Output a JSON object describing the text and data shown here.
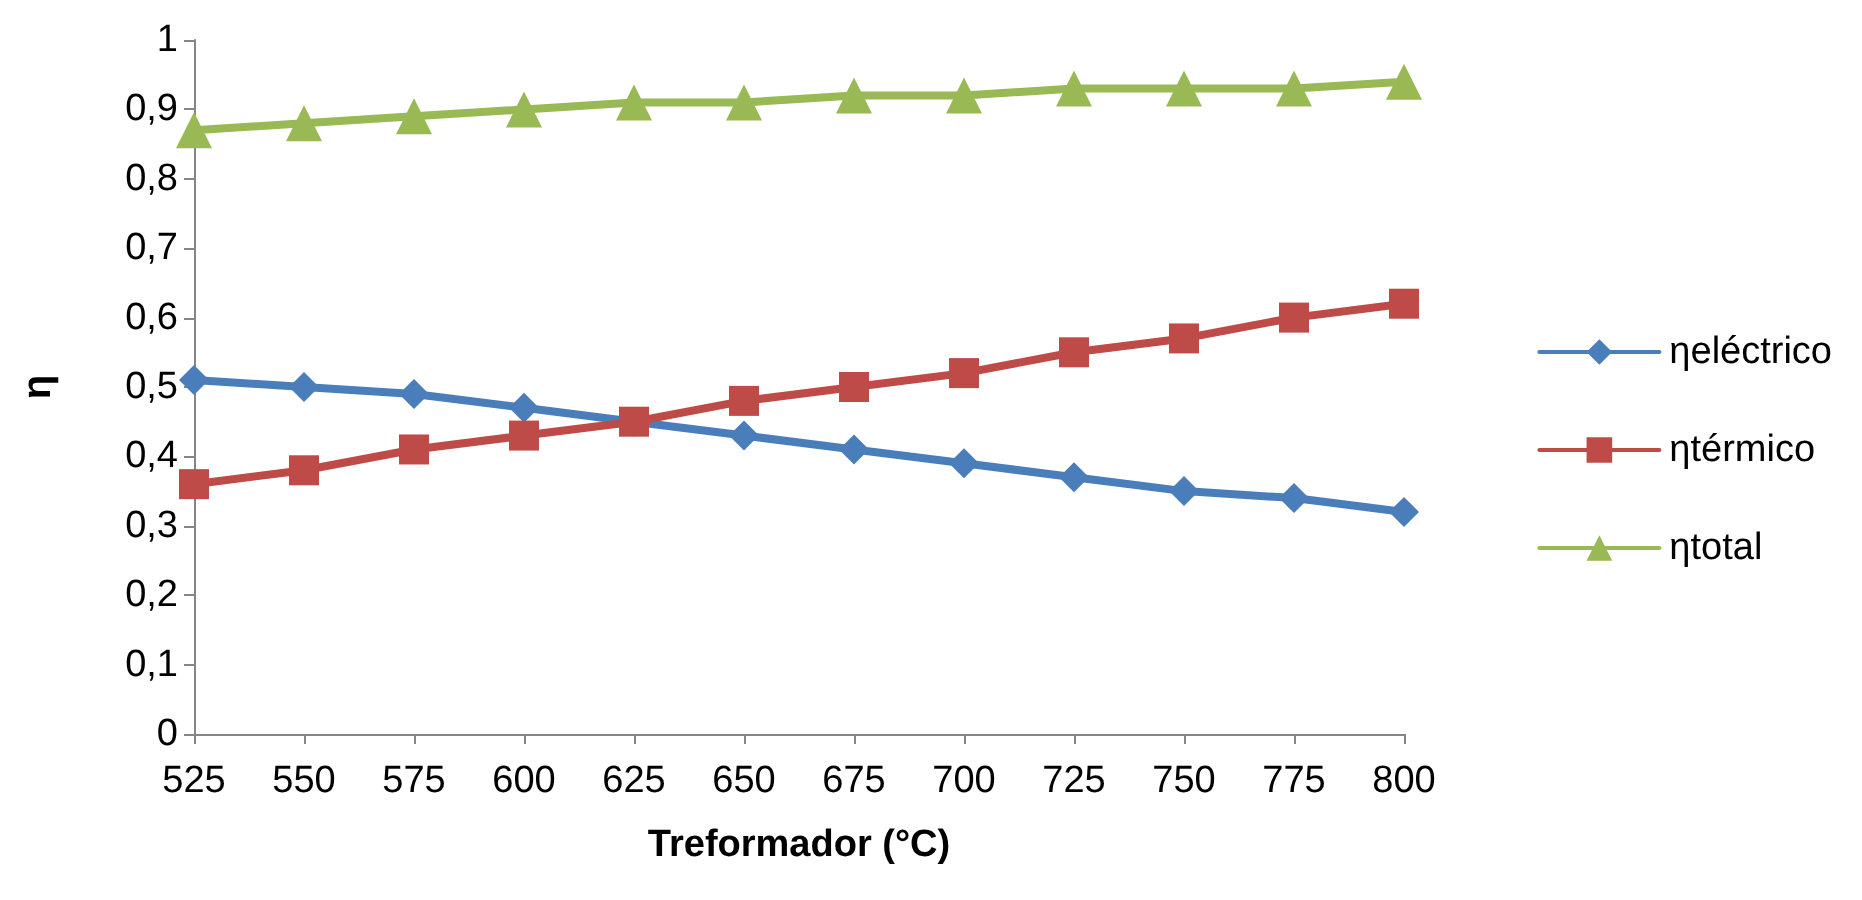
{
  "chart_data": {
    "type": "line",
    "xlabel": "Treformador (°C)",
    "ylabel": "η",
    "categories": [
      "525",
      "550",
      "575",
      "600",
      "625",
      "650",
      "675",
      "700",
      "725",
      "750",
      "775",
      "800"
    ],
    "series": [
      {
        "name": "ηeléctrico",
        "color": "#4a7ebb",
        "marker": "diamond",
        "values": [
          0.51,
          0.5,
          0.49,
          0.47,
          0.45,
          0.43,
          0.41,
          0.39,
          0.37,
          0.35,
          0.34,
          0.32
        ]
      },
      {
        "name": "ηtérmico",
        "color": "#be4b48",
        "marker": "square",
        "values": [
          0.36,
          0.38,
          0.41,
          0.43,
          0.45,
          0.48,
          0.5,
          0.52,
          0.55,
          0.57,
          0.6,
          0.62
        ]
      },
      {
        "name": "ηtotal",
        "color": "#98b954",
        "marker": "triangle",
        "values": [
          0.87,
          0.88,
          0.89,
          0.9,
          0.91,
          0.91,
          0.92,
          0.92,
          0.93,
          0.93,
          0.93,
          0.94
        ]
      }
    ],
    "ylim": [
      0,
      1
    ],
    "yticks": [
      0,
      {
        "value": 0.1,
        "label": "0,1"
      },
      {
        "value": 0.2,
        "label": "0,2"
      },
      {
        "value": 0.3,
        "label": "0,3"
      },
      {
        "value": 0.4,
        "label": "0,4"
      },
      {
        "value": 0.5,
        "label": "0,5"
      },
      {
        "value": 0.6,
        "label": "0,6"
      },
      {
        "value": 0.7,
        "label": "0,7"
      },
      {
        "value": 0.8,
        "label": "0,8"
      },
      {
        "value": 0.9,
        "label": "0,9"
      },
      1
    ],
    "grid": false,
    "legend": "right",
    "line_style": "solid"
  }
}
